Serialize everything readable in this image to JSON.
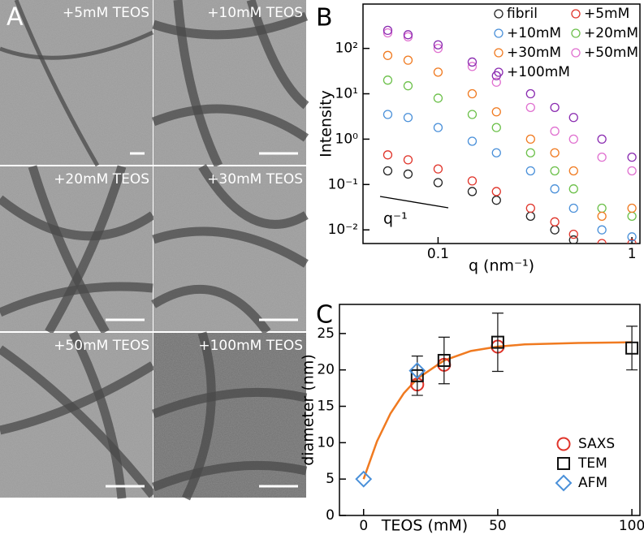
{
  "panel_a": {
    "label": "A",
    "images": [
      "+5mM TEOS",
      "+10mM TEOS",
      "+20mM TEOS",
      "+30mM TEOS",
      "+50mM TEOS",
      "+100mM TEOS"
    ]
  },
  "chart_data": [
    {
      "type": "scatter",
      "panel_label": "B",
      "x_label": "q (nm⁻¹)",
      "y_label": "Intensity",
      "annotation": "q⁻¹",
      "xlog": true,
      "ylog": true,
      "xlim": [
        0.041,
        1.1
      ],
      "ylim": [
        0.005,
        950
      ],
      "xticks": [
        0.1,
        1
      ],
      "yticks": [
        {
          "value": 0.01,
          "label": "10⁻²"
        },
        {
          "value": 0.1,
          "label": "10⁻¹"
        },
        {
          "value": 1,
          "label": "10⁰"
        },
        {
          "value": 10,
          "label": "10¹"
        },
        {
          "value": 100,
          "label": "10²"
        }
      ],
      "x": [
        0.055,
        0.07,
        0.1,
        0.15,
        0.2,
        0.3,
        0.4,
        0.5,
        0.7,
        1.0
      ],
      "series": [
        {
          "name": "fibril",
          "color": "#222222",
          "values": [
            0.2,
            0.17,
            0.11,
            0.07,
            0.045,
            0.02,
            0.01,
            0.006,
            null,
            null
          ]
        },
        {
          "name": "+5mM",
          "color": "#e0342a",
          "values": [
            0.45,
            0.35,
            0.22,
            0.12,
            0.07,
            0.03,
            0.015,
            0.008,
            0.005,
            0.005
          ]
        },
        {
          "name": "+10mM",
          "color": "#4a90d9",
          "values": [
            3.5,
            3,
            1.8,
            0.9,
            0.5,
            0.2,
            0.08,
            0.03,
            0.01,
            0.007
          ]
        },
        {
          "name": "+20mM",
          "color": "#6cc04a",
          "values": [
            20,
            15,
            8,
            3.5,
            1.8,
            0.5,
            0.2,
            0.08,
            0.03,
            0.02
          ]
        },
        {
          "name": "+30mM",
          "color": "#f07a20",
          "values": [
            70,
            55,
            30,
            10,
            4,
            1,
            0.5,
            0.2,
            0.02,
            0.03
          ]
        },
        {
          "name": "+50mM",
          "color": "#e070d0",
          "values": [
            220,
            180,
            100,
            40,
            18,
            5,
            1.5,
            1,
            0.4,
            0.2
          ]
        },
        {
          "name": "+100mM",
          "color": "#8a2bb0",
          "values": [
            250,
            200,
            120,
            50,
            25,
            10,
            5,
            3,
            1,
            0.4
          ]
        }
      ]
    },
    {
      "type": "scatter",
      "panel_label": "C",
      "x_label": "TEOS (mM)",
      "y_label": "diameter (nm)",
      "xlim": [
        -9,
        103
      ],
      "ylim": [
        0,
        29
      ],
      "xticks": [
        0,
        50,
        100
      ],
      "yticks": [
        0,
        5,
        10,
        15,
        20,
        25
      ],
      "legend": "lower right",
      "fit": {
        "color": "#f07a20",
        "x": [
          0,
          5,
          10,
          15,
          20,
          30,
          40,
          50,
          60,
          80,
          100
        ],
        "values": [
          5,
          10.2,
          14,
          16.8,
          18.8,
          21.3,
          22.6,
          23.2,
          23.5,
          23.7,
          23.8
        ]
      },
      "series": [
        {
          "name": "SAXS",
          "color": "#e0342a",
          "marker": "circle",
          "x": [
            20,
            30,
            50
          ],
          "values": [
            18,
            20.7,
            23.2
          ]
        },
        {
          "name": "TEM",
          "color": "#111111",
          "marker": "square",
          "x": [
            20,
            30,
            50,
            100
          ],
          "values": [
            19.2,
            21.3,
            23.8,
            23
          ],
          "errors": [
            2.7,
            3.2,
            4,
            3
          ]
        },
        {
          "name": "AFM",
          "color": "#4a90d9",
          "marker": "diamond",
          "x": [
            0,
            20
          ],
          "values": [
            5,
            19.9
          ]
        }
      ]
    }
  ]
}
